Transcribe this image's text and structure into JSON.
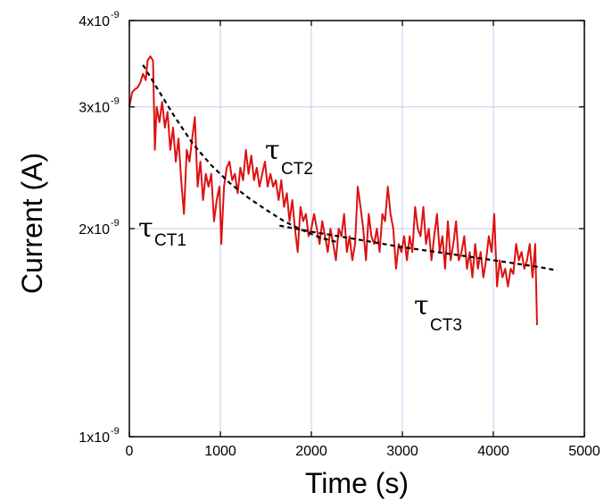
{
  "chart_data": {
    "type": "line",
    "xlabel": "Time (s)",
    "ylabel": "Current (A)",
    "xlim": [
      0,
      5000
    ],
    "ylim": [
      1e-09,
      4e-09
    ],
    "yscale": "log",
    "grid": true,
    "x_ticks": [
      0,
      1000,
      2000,
      3000,
      4000,
      5000
    ],
    "x_tick_labels": [
      "0",
      "1000",
      "2000",
      "3000",
      "4000",
      "5000"
    ],
    "y_ticks": [
      1e-09,
      2e-09,
      3e-09,
      4e-09
    ],
    "y_tick_labels": [
      {
        "mantissa": "1x10",
        "exp": "-9"
      },
      {
        "mantissa": "2x10",
        "exp": "-9"
      },
      {
        "mantissa": "3x10",
        "exp": "-9"
      },
      {
        "mantissa": "4x10",
        "exp": "-9"
      }
    ],
    "colors": {
      "data": "#dd1111",
      "fit": "#000000",
      "grid": "#c8c8f0"
    },
    "series": [
      {
        "style": "solid",
        "x": [
          0,
          30,
          60,
          90,
          120,
          150,
          180,
          200,
          230,
          260,
          280,
          300,
          330,
          360,
          390,
          420,
          450,
          480,
          510,
          540,
          570,
          600,
          630,
          660,
          690,
          720,
          750,
          780,
          810,
          840,
          870,
          900,
          930,
          960,
          990,
          1010,
          1040,
          1070,
          1100,
          1130,
          1160,
          1190,
          1220,
          1250,
          1280,
          1310,
          1340,
          1370,
          1400,
          1430,
          1460,
          1490,
          1520,
          1550,
          1580,
          1610,
          1640,
          1670,
          1700,
          1730,
          1760,
          1790,
          1820,
          1850,
          1880,
          1910,
          1940,
          1970,
          2000,
          2030,
          2060,
          2090,
          2120,
          2150,
          2180,
          2210,
          2240,
          2270,
          2300,
          2330,
          2360,
          2390,
          2420,
          2450,
          2480,
          2510,
          2540,
          2570,
          2600,
          2630,
          2660,
          2690,
          2720,
          2750,
          2780,
          2810,
          2840,
          2870,
          2900,
          2930,
          2960,
          2990,
          3020,
          3050,
          3080,
          3110,
          3140,
          3170,
          3200,
          3230,
          3260,
          3290,
          3320,
          3350,
          3380,
          3410,
          3440,
          3470,
          3500,
          3530,
          3560,
          3590,
          3620,
          3650,
          3680,
          3710,
          3740,
          3770,
          3800,
          3830,
          3860,
          3890,
          3920,
          3950,
          3980,
          4010,
          4040,
          4070,
          4100,
          4130,
          4160,
          4190,
          4220,
          4250,
          4280,
          4310,
          4340,
          4370,
          4400,
          4430,
          4460,
          4480
        ],
        "y": [
          3e-09,
          3.15e-09,
          3.18e-09,
          3.2e-09,
          3.25e-09,
          3.35e-09,
          3.28e-09,
          3.5e-09,
          3.55e-09,
          3.5e-09,
          2.6e-09,
          3e-09,
          2.85e-09,
          3.05e-09,
          2.8e-09,
          2.95e-09,
          2.6e-09,
          2.8e-09,
          2.5e-09,
          2.7e-09,
          2.35e-09,
          2.1e-09,
          2.6e-09,
          2.5e-09,
          2.7e-09,
          2.9e-09,
          2.3e-09,
          2.5e-09,
          2.2e-09,
          2.4e-09,
          2.3e-09,
          2.4e-09,
          2.05e-09,
          2.2e-09,
          2.3e-09,
          1.9e-09,
          2.3e-09,
          2.45e-09,
          2.5e-09,
          2.35e-09,
          2.4e-09,
          2.25e-09,
          2.45e-09,
          2.35e-09,
          2.6e-09,
          2.4e-09,
          2.55e-09,
          2.35e-09,
          2.45e-09,
          2.3e-09,
          2.4e-09,
          2.5e-09,
          2.3e-09,
          2.4e-09,
          2.3e-09,
          2.35e-09,
          2.2e-09,
          2.35e-09,
          2.15e-09,
          2.25e-09,
          2.05e-09,
          2.2e-09,
          2e-09,
          1.85e-09,
          2.15e-09,
          2.05e-09,
          2.1e-09,
          1.95e-09,
          2e-09,
          2.1e-09,
          2e-09,
          1.9e-09,
          2.05e-09,
          1.95e-09,
          1.85e-09,
          2e-09,
          1.9e-09,
          1.8e-09,
          2e-09,
          1.95e-09,
          2.1e-09,
          1.85e-09,
          1.95e-09,
          1.8e-09,
          1.9e-09,
          2.3e-09,
          2.15e-09,
          2e-09,
          1.8e-09,
          2.1e-09,
          1.95e-09,
          1.9e-09,
          2e-09,
          1.85e-09,
          2.1e-09,
          2.05e-09,
          2.3e-09,
          2.1e-09,
          2e-09,
          1.75e-09,
          1.9e-09,
          1.85e-09,
          1.95e-09,
          1.8e-09,
          1.95e-09,
          1.85e-09,
          2.15e-09,
          2e-09,
          1.95e-09,
          2.15e-09,
          1.9e-09,
          2e-09,
          1.8e-09,
          1.95e-09,
          2.1e-09,
          1.85e-09,
          1.95e-09,
          1.75e-09,
          2.05e-09,
          1.8e-09,
          1.9e-09,
          2.05e-09,
          1.8e-09,
          1.85e-09,
          1.95e-09,
          1.75e-09,
          1.85e-09,
          1.7e-09,
          1.9e-09,
          1.75e-09,
          1.85e-09,
          1.7e-09,
          1.8e-09,
          1.95e-09,
          1.85e-09,
          2.1e-09,
          1.65e-09,
          1.8e-09,
          1.7e-09,
          1.75e-09,
          1.65e-09,
          1.75e-09,
          1.72e-09,
          1.9e-09,
          1.8e-09,
          1.85e-09,
          1.75e-09,
          1.8e-09,
          1.9e-09,
          1.7e-09,
          1.9e-09,
          1.45e-09
        ]
      },
      {
        "style": "dashed",
        "x": [
          150,
          300,
          500,
          700,
          900,
          1100,
          1300,
          1500,
          1700,
          1900,
          2100,
          2300
        ],
        "y": [
          3.45e-09,
          3.2e-09,
          2.9e-09,
          2.65e-09,
          2.47e-09,
          2.33e-09,
          2.22e-09,
          2.13e-09,
          2.05e-09,
          1.99e-09,
          1.94e-09,
          1.91e-09
        ]
      },
      {
        "style": "dashed",
        "x": [
          1650,
          2000,
          2500,
          3000,
          3500,
          4000,
          4500,
          4700
        ],
        "y": [
          2.02e-09,
          1.98e-09,
          1.93e-09,
          1.88e-09,
          1.84e-09,
          1.8e-09,
          1.76e-09,
          1.74e-09
        ]
      }
    ],
    "annotations": [
      {
        "symbol": "τ",
        "subscript": "CT1"
      },
      {
        "symbol": "τ",
        "subscript": "CT2"
      },
      {
        "symbol": "τ",
        "subscript": "CT3"
      }
    ]
  }
}
